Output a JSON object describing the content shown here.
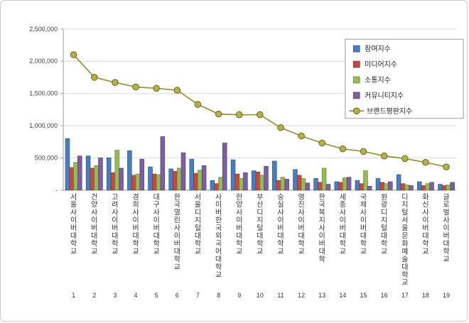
{
  "chart_data": {
    "type": "bar",
    "title": "",
    "xlabel": "",
    "ylabel": "",
    "grid": true,
    "legend_position": "top-right",
    "ylim": [
      0,
      2500000
    ],
    "ytick_interval": 500000,
    "ytick_labels": [
      "-",
      "500,000",
      "1,000,000",
      "1,500,000",
      "2,000,000",
      "2,500,000"
    ],
    "categories": [
      "서울사이버대학교",
      "건양사이버대학교",
      "고려사이버대학교",
      "경희사이버대학교",
      "대구사이버대학교",
      "한국열린사이버대학교",
      "서울디지털대학교",
      "사이버한국외국어대학교",
      "한양사이버대학교",
      "부산디지털대학교",
      "숭실사이버대학교",
      "영진사이버대학교",
      "한국복지사이버대학",
      "세종사이버대학교",
      "국제사이버대학교",
      "원광디지털대학교",
      "디지털서울문화예술대학교",
      "화신사이버대학교",
      "글로벌사이버대학교"
    ],
    "rank_labels": [
      "1",
      "2",
      "3",
      "4",
      "5",
      "6",
      "7",
      "8",
      "9",
      "10",
      "11",
      "12",
      "13",
      "14",
      "15",
      "16",
      "17",
      "18",
      "19"
    ],
    "series": [
      {
        "key": "participation",
        "name": "참여지수",
        "color": "#4A7EBA",
        "edge": "#2E5A8F",
        "values": [
          800000,
          530000,
          500000,
          610000,
          360000,
          330000,
          480000,
          150000,
          470000,
          300000,
          450000,
          320000,
          180000,
          130000,
          150000,
          180000,
          240000,
          130000,
          90000
        ]
      },
      {
        "key": "media",
        "name": "미디어지수",
        "color": "#BE4B48",
        "edge": "#8E3431",
        "values": [
          350000,
          340000,
          270000,
          230000,
          250000,
          290000,
          260000,
          100000,
          250000,
          280000,
          150000,
          230000,
          120000,
          120000,
          100000,
          120000,
          100000,
          70000,
          70000
        ]
      },
      {
        "key": "communication",
        "name": "소통지수",
        "color": "#98B954",
        "edge": "#6E8A39",
        "values": [
          430000,
          380000,
          620000,
          250000,
          240000,
          340000,
          310000,
          200000,
          180000,
          230000,
          200000,
          180000,
          340000,
          190000,
          300000,
          100000,
          80000,
          100000,
          80000
        ]
      },
      {
        "key": "community",
        "name": "커뮤니티지수",
        "color": "#7D60A0",
        "edge": "#5B4475",
        "values": [
          530000,
          500000,
          340000,
          480000,
          830000,
          580000,
          380000,
          730000,
          270000,
          370000,
          170000,
          110000,
          90000,
          200000,
          60000,
          130000,
          70000,
          120000,
          120000
        ]
      }
    ],
    "line_series": {
      "key": "brand-reputation",
      "name": "브랜드평판지수",
      "color": "#9A9839",
      "marker_fill": "#B5B148",
      "marker_edge": "#67651F",
      "values": [
        2100000,
        1750000,
        1670000,
        1600000,
        1580000,
        1550000,
        1330000,
        1180000,
        1170000,
        1170000,
        970000,
        840000,
        730000,
        640000,
        600000,
        530000,
        490000,
        430000,
        360000
      ]
    }
  }
}
